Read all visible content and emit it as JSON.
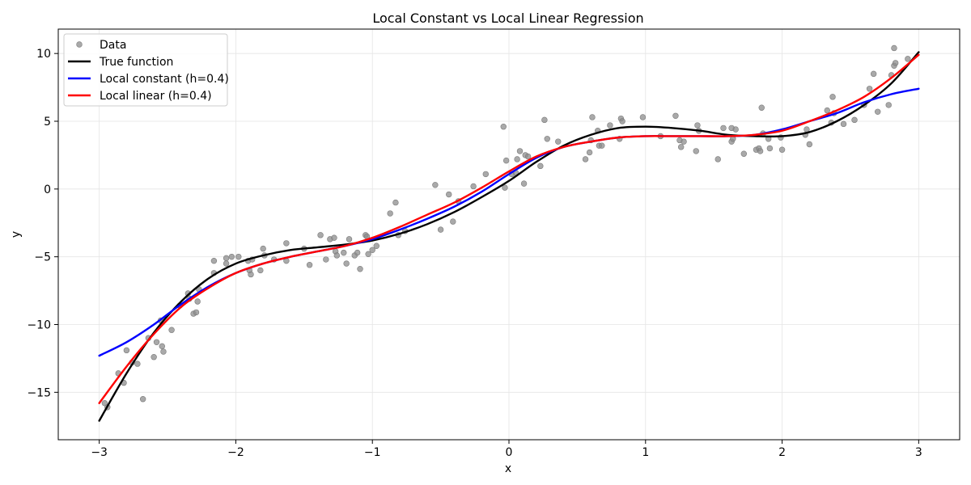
{
  "chart_data": {
    "type": "scatter",
    "title": "Local Constant vs Local Linear Regression",
    "xlabel": "x",
    "ylabel": "y",
    "xlim": [
      -3.3,
      3.3
    ],
    "ylim": [
      -18.5,
      11.8
    ],
    "xticks": [
      -3,
      -2,
      -1,
      0,
      1,
      2,
      3
    ],
    "xtick_labels": [
      "−3",
      "−2",
      "−1",
      "0",
      "1",
      "2",
      "3"
    ],
    "yticks": [
      -15,
      -10,
      -5,
      0,
      5,
      10
    ],
    "ytick_labels": [
      "−15",
      "−10",
      "−5",
      "0",
      "5",
      "10"
    ],
    "grid": true,
    "legend_position": "top-left",
    "legend": [
      {
        "label": "Data",
        "kind": "marker",
        "color": "#8c8c8c"
      },
      {
        "label": "True function",
        "kind": "line",
        "color": "#000000"
      },
      {
        "label": "Local constant (h=0.4)",
        "kind": "line",
        "color": "#0000ff"
      },
      {
        "label": "Local linear (h=0.4)",
        "kind": "line",
        "color": "#ff0000"
      }
    ],
    "scatter": {
      "name": "Data",
      "color": "#8c8c8c",
      "points": [
        [
          -2.96,
          -15.8
        ],
        [
          -2.94,
          -16.1
        ],
        [
          -2.86,
          -13.6
        ],
        [
          -2.82,
          -14.3
        ],
        [
          -2.8,
          -11.9
        ],
        [
          -2.76,
          -12.8
        ],
        [
          -2.72,
          -12.9
        ],
        [
          -2.68,
          -15.5
        ],
        [
          -2.64,
          -11.0
        ],
        [
          -2.6,
          -12.4
        ],
        [
          -2.58,
          -11.3
        ],
        [
          -2.55,
          -9.7
        ],
        [
          -2.54,
          -11.6
        ],
        [
          -2.53,
          -12.0
        ],
        [
          -2.47,
          -10.4
        ],
        [
          -2.41,
          -8.6
        ],
        [
          -2.35,
          -7.7
        ],
        [
          -2.34,
          -8.1
        ],
        [
          -2.31,
          -9.2
        ],
        [
          -2.29,
          -9.1
        ],
        [
          -2.28,
          -8.3
        ],
        [
          -2.27,
          -7.4
        ],
        [
          -2.16,
          -5.3
        ],
        [
          -2.16,
          -6.2
        ],
        [
          -2.07,
          -5.1
        ],
        [
          -2.07,
          -5.5
        ],
        [
          -2.03,
          -5.0
        ],
        [
          -1.98,
          -5.0
        ],
        [
          -1.91,
          -5.3
        ],
        [
          -1.9,
          -6.0
        ],
        [
          -1.89,
          -6.3
        ],
        [
          -1.88,
          -5.2
        ],
        [
          -1.82,
          -6.0
        ],
        [
          -1.8,
          -4.4
        ],
        [
          -1.79,
          -4.9
        ],
        [
          -1.72,
          -5.2
        ],
        [
          -1.63,
          -5.3
        ],
        [
          -1.63,
          -4.0
        ],
        [
          -1.5,
          -4.4
        ],
        [
          -1.46,
          -5.6
        ],
        [
          -1.38,
          -3.4
        ],
        [
          -1.34,
          -5.2
        ],
        [
          -1.31,
          -3.7
        ],
        [
          -1.28,
          -3.6
        ],
        [
          -1.27,
          -4.6
        ],
        [
          -1.26,
          -4.9
        ],
        [
          -1.21,
          -4.7
        ],
        [
          -1.19,
          -5.5
        ],
        [
          -1.17,
          -3.7
        ],
        [
          -1.13,
          -4.9
        ],
        [
          -1.11,
          -4.7
        ],
        [
          -1.09,
          -5.9
        ],
        [
          -1.05,
          -3.4
        ],
        [
          -1.04,
          -3.5
        ],
        [
          -1.03,
          -4.8
        ],
        [
          -1.0,
          -4.5
        ],
        [
          -0.97,
          -4.2
        ],
        [
          -0.87,
          -1.8
        ],
        [
          -0.83,
          -1.0
        ],
        [
          -0.81,
          -3.4
        ],
        [
          -0.76,
          -3.1
        ],
        [
          -0.54,
          0.3
        ],
        [
          -0.5,
          -3.0
        ],
        [
          -0.44,
          -0.4
        ],
        [
          -0.41,
          -2.4
        ],
        [
          -0.37,
          -0.9
        ],
        [
          -0.26,
          0.2
        ],
        [
          -0.17,
          1.1
        ],
        [
          -0.04,
          4.6
        ],
        [
          -0.03,
          0.1
        ],
        [
          -0.02,
          2.1
        ],
        [
          0.02,
          1.1
        ],
        [
          0.05,
          1.2
        ],
        [
          0.06,
          2.2
        ],
        [
          0.08,
          2.8
        ],
        [
          0.11,
          0.4
        ],
        [
          0.12,
          2.5
        ],
        [
          0.14,
          2.4
        ],
        [
          0.23,
          1.7
        ],
        [
          0.26,
          5.1
        ],
        [
          0.28,
          3.7
        ],
        [
          0.36,
          3.5
        ],
        [
          0.56,
          2.2
        ],
        [
          0.59,
          2.7
        ],
        [
          0.6,
          3.6
        ],
        [
          0.61,
          5.3
        ],
        [
          0.65,
          4.3
        ],
        [
          0.66,
          3.2
        ],
        [
          0.68,
          3.2
        ],
        [
          0.74,
          4.7
        ],
        [
          0.81,
          3.7
        ],
        [
          0.82,
          5.2
        ],
        [
          0.83,
          5.0
        ],
        [
          0.98,
          5.3
        ],
        [
          1.11,
          3.9
        ],
        [
          1.22,
          5.4
        ],
        [
          1.25,
          3.6
        ],
        [
          1.26,
          3.1
        ],
        [
          1.28,
          3.5
        ],
        [
          1.37,
          2.8
        ],
        [
          1.38,
          4.7
        ],
        [
          1.39,
          4.3
        ],
        [
          1.53,
          2.2
        ],
        [
          1.57,
          4.5
        ],
        [
          1.63,
          4.5
        ],
        [
          1.63,
          3.5
        ],
        [
          1.64,
          3.7
        ],
        [
          1.66,
          4.4
        ],
        [
          1.72,
          2.6
        ],
        [
          1.81,
          2.9
        ],
        [
          1.83,
          3.0
        ],
        [
          1.84,
          2.8
        ],
        [
          1.85,
          6.0
        ],
        [
          1.86,
          4.1
        ],
        [
          1.9,
          3.7
        ],
        [
          1.91,
          3.0
        ],
        [
          1.99,
          3.8
        ],
        [
          2.0,
          2.9
        ],
        [
          2.17,
          4.0
        ],
        [
          2.18,
          4.4
        ],
        [
          2.2,
          3.3
        ],
        [
          2.33,
          5.8
        ],
        [
          2.36,
          4.9
        ],
        [
          2.37,
          6.8
        ],
        [
          2.38,
          5.6
        ],
        [
          2.45,
          4.8
        ],
        [
          2.53,
          5.1
        ],
        [
          2.6,
          6.2
        ],
        [
          2.64,
          7.4
        ],
        [
          2.67,
          8.5
        ],
        [
          2.7,
          5.7
        ],
        [
          2.78,
          6.2
        ],
        [
          2.8,
          8.4
        ],
        [
          2.82,
          9.1
        ],
        [
          2.83,
          9.3
        ],
        [
          2.82,
          10.4
        ],
        [
          2.92,
          9.6
        ]
      ]
    },
    "series": [
      {
        "name": "True function",
        "color": "#000000",
        "x": [
          -3.0,
          -2.8,
          -2.6,
          -2.4,
          -2.2,
          -2.0,
          -1.8,
          -1.6,
          -1.4,
          -1.2,
          -1.0,
          -0.8,
          -0.6,
          -0.4,
          -0.2,
          0.0,
          0.2,
          0.4,
          0.6,
          0.8,
          1.0,
          1.2,
          1.4,
          1.6,
          1.8,
          2.0,
          2.2,
          2.4,
          2.6,
          2.8,
          3.0
        ],
        "y": [
          -17.1,
          -13.6,
          -10.6,
          -8.3,
          -6.6,
          -5.5,
          -4.9,
          -4.5,
          -4.3,
          -4.1,
          -3.8,
          -3.3,
          -2.6,
          -1.7,
          -0.6,
          0.6,
          2.0,
          3.2,
          4.0,
          4.5,
          4.6,
          4.5,
          4.3,
          4.0,
          3.9,
          3.9,
          4.2,
          5.0,
          6.2,
          7.8,
          10.1
        ]
      },
      {
        "name": "Local constant (h=0.4)",
        "color": "#0000ff",
        "x": [
          -3.0,
          -2.8,
          -2.6,
          -2.4,
          -2.2,
          -2.0,
          -1.8,
          -1.6,
          -1.4,
          -1.2,
          -1.0,
          -0.8,
          -0.6,
          -0.4,
          -0.2,
          0.0,
          0.2,
          0.4,
          0.6,
          0.8,
          1.0,
          1.2,
          1.4,
          1.6,
          1.8,
          2.0,
          2.2,
          2.4,
          2.6,
          2.8,
          3.0
        ],
        "y": [
          -12.3,
          -11.3,
          -10.0,
          -8.5,
          -7.2,
          -6.2,
          -5.5,
          -5.0,
          -4.6,
          -4.2,
          -3.7,
          -3.0,
          -2.2,
          -1.3,
          -0.2,
          1.1,
          2.3,
          3.1,
          3.5,
          3.8,
          3.9,
          3.9,
          3.9,
          3.9,
          4.0,
          4.4,
          5.0,
          5.6,
          6.4,
          7.0,
          7.4
        ]
      },
      {
        "name": "Local linear (h=0.4)",
        "color": "#ff0000",
        "x": [
          -3.0,
          -2.8,
          -2.6,
          -2.4,
          -2.2,
          -2.0,
          -1.8,
          -1.6,
          -1.4,
          -1.2,
          -1.0,
          -0.8,
          -0.6,
          -0.4,
          -0.2,
          0.0,
          0.2,
          0.4,
          0.6,
          0.8,
          1.0,
          1.2,
          1.4,
          1.6,
          1.8,
          2.0,
          2.2,
          2.4,
          2.6,
          2.8,
          3.0
        ],
        "y": [
          -15.8,
          -13.1,
          -10.7,
          -8.7,
          -7.3,
          -6.2,
          -5.5,
          -5.0,
          -4.6,
          -4.2,
          -3.6,
          -2.8,
          -1.9,
          -1.0,
          0.1,
          1.3,
          2.4,
          3.1,
          3.5,
          3.8,
          3.9,
          3.9,
          3.9,
          3.9,
          4.0,
          4.3,
          5.0,
          5.8,
          6.8,
          8.2,
          9.9
        ]
      }
    ]
  }
}
